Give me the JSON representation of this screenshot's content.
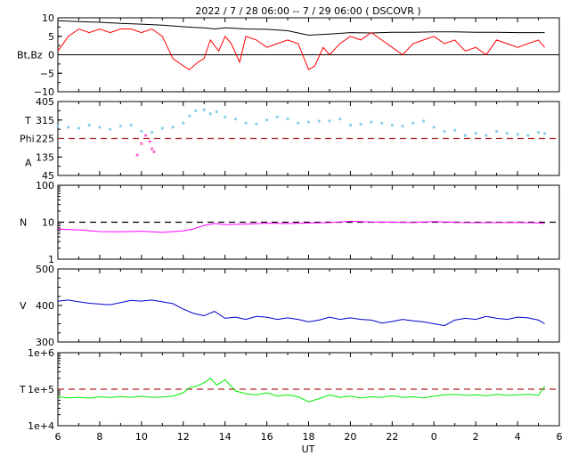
{
  "title": "2022 /  7 / 28  06:00 --  7 / 29   06:00 ( DSCOVR )",
  "x_axis": {
    "label": "UT",
    "ticks": [
      "6",
      "8",
      "10",
      "12",
      "14",
      "16",
      "18",
      "20",
      "22",
      "0",
      "2",
      "4",
      "6"
    ]
  },
  "colors": {
    "bt": "#000000",
    "bz": "#ff0000",
    "theta": "#87ceeb",
    "phi": "#ff66cc",
    "ref_dashed": "#b22222",
    "density": "#ff00ff",
    "speed": "#0000cc",
    "temperature": "#00ee00"
  },
  "panels": [
    {
      "id": "mag",
      "ylabel": "Bt,Bz",
      "yticks": [
        "10",
        "5",
        "0",
        "−5",
        "−10"
      ]
    },
    {
      "id": "angles",
      "ylabel_lines": [
        "T",
        "Phi",
        "A"
      ],
      "yticks": [
        "405",
        "315",
        "225",
        "135",
        "45"
      ]
    },
    {
      "id": "density",
      "ylabel": "N",
      "yticks": [
        "100",
        "10",
        "1"
      ]
    },
    {
      "id": "speed",
      "ylabel": "V",
      "yticks": [
        "500",
        "400",
        "300"
      ]
    },
    {
      "id": "temp",
      "ylabel": "T",
      "yticks": [
        "1e+6",
        "1e+5",
        "1e+4"
      ]
    }
  ],
  "chart_data": [
    {
      "type": "line",
      "title": "",
      "ylabel": "Bt,Bz",
      "xlim": [
        6,
        30
      ],
      "ylim": [
        -10,
        10
      ],
      "grid": false,
      "series": [
        {
          "name": "",
          "color": "#000000",
          "x": [
            6.0,
            7,
            8,
            9,
            10,
            11,
            12,
            12.5,
            13,
            13.5,
            14,
            15,
            16,
            17,
            18,
            19,
            20,
            21,
            22,
            23,
            24,
            25,
            26,
            27,
            28,
            29,
            29.3
          ],
          "values": [
            9.2,
            9.0,
            8.8,
            8.5,
            8.3,
            8.0,
            7.6,
            7.4,
            7.3,
            7.0,
            7.3,
            7.0,
            6.9,
            6.5,
            5.3,
            5.6,
            6.0,
            5.9,
            6.1,
            6.1,
            6.2,
            6.2,
            6.1,
            6.1,
            6.0,
            6.0,
            6.0
          ]
        },
        {
          "name": "",
          "color": "#ff0000",
          "x": [
            6.0,
            6.5,
            7,
            7.5,
            8,
            8.5,
            9,
            9.5,
            10,
            10.5,
            11,
            11.5,
            12,
            12.3,
            12.7,
            13,
            13.3,
            13.7,
            14,
            14.3,
            14.7,
            15,
            15.5,
            16,
            16.5,
            17,
            17.5,
            18,
            18.3,
            18.7,
            19,
            19.5,
            20,
            20.5,
            21,
            21.5,
            22,
            22.5,
            23,
            23.5,
            24,
            24.5,
            25,
            25.5,
            26,
            26.5,
            27,
            27.5,
            28,
            28.5,
            29,
            29.3
          ],
          "values": [
            1,
            5,
            7,
            6,
            7,
            6,
            7,
            7,
            6,
            7,
            5,
            -1,
            -3,
            -4,
            -2,
            -1,
            4,
            1,
            5,
            3,
            -2,
            5,
            4,
            2,
            3,
            4,
            3,
            -4,
            -3,
            2,
            0,
            3,
            5,
            4,
            6,
            4,
            2,
            0,
            3,
            4,
            5,
            3,
            4,
            1,
            2,
            0,
            4,
            3,
            2,
            3,
            4,
            2
          ]
        }
      ]
    },
    {
      "type": "scatter",
      "title": "",
      "ylabel": "T / Phi / A",
      "xlim": [
        6,
        30
      ],
      "ylim": [
        45,
        405
      ],
      "grid": false,
      "reference_line": {
        "y": 225,
        "style": "dashed",
        "color": "#b22222"
      },
      "series": [
        {
          "name": "",
          "color": "#87ceeb",
          "x": [
            6.0,
            6.5,
            7,
            7.5,
            8,
            8.5,
            9,
            9.5,
            10,
            10.5,
            11,
            11.5,
            12,
            12.3,
            12.6,
            13,
            13.3,
            13.6,
            14,
            14.5,
            15,
            15.5,
            16,
            16.5,
            17,
            17.5,
            18,
            18.5,
            19,
            19.5,
            20,
            20.5,
            21,
            21.5,
            22,
            22.5,
            23,
            23.5,
            24,
            24.5,
            25,
            25.5,
            26,
            26.5,
            27,
            27.5,
            28,
            28.5,
            29,
            29.3
          ],
          "values": [
            285,
            280,
            275,
            290,
            280,
            270,
            285,
            290,
            260,
            255,
            275,
            280,
            300,
            335,
            360,
            365,
            345,
            355,
            330,
            320,
            300,
            295,
            315,
            330,
            320,
            300,
            305,
            310,
            310,
            320,
            290,
            295,
            305,
            300,
            290,
            285,
            300,
            310,
            280,
            260,
            265,
            240,
            250,
            240,
            260,
            250,
            245,
            240,
            255,
            250
          ]
        },
        {
          "name": "",
          "color": "#ff66cc",
          "x": [
            9.8,
            10.0,
            10.2,
            10.4,
            10.5,
            10.6
          ],
          "values": [
            145,
            200,
            240,
            210,
            175,
            160
          ]
        }
      ]
    },
    {
      "type": "line",
      "title": "",
      "ylabel": "N",
      "xlim": [
        6,
        30
      ],
      "ylim": [
        1,
        100
      ],
      "scale": "log",
      "grid": false,
      "reference_line": {
        "y": 10,
        "style": "dashed",
        "color": "#000000"
      },
      "series": [
        {
          "name": "",
          "color": "#ff00ff",
          "x": [
            6.0,
            7,
            8,
            9,
            10,
            11,
            12,
            12.5,
            13,
            13.5,
            14,
            15,
            16,
            17,
            18,
            19,
            20,
            21,
            22,
            23,
            24,
            25,
            26,
            27,
            28,
            29,
            29.3
          ],
          "values": [
            6.5,
            6.2,
            5.6,
            5.5,
            5.7,
            5.3,
            5.8,
            6.6,
            8.2,
            9.2,
            8.6,
            8.9,
            9.4,
            9.2,
            9.5,
            9.7,
            10.6,
            10.1,
            10.0,
            9.8,
            10.4,
            9.9,
            9.7,
            9.8,
            9.9,
            9.6,
            9.2
          ]
        }
      ]
    },
    {
      "type": "line",
      "title": "",
      "ylabel": "V",
      "xlim": [
        6,
        30
      ],
      "ylim": [
        300,
        500
      ],
      "grid": false,
      "series": [
        {
          "name": "",
          "color": "#0000cc",
          "x": [
            6.0,
            6.5,
            7,
            7.5,
            8,
            8.5,
            9,
            9.5,
            10,
            10.5,
            11,
            11.5,
            12,
            12.5,
            13,
            13.5,
            14,
            14.5,
            15,
            15.5,
            16,
            16.5,
            17,
            17.5,
            18,
            18.5,
            19,
            19.5,
            20,
            20.5,
            21,
            21.5,
            22,
            22.5,
            23,
            23.5,
            24,
            24.5,
            25,
            25.5,
            26,
            26.5,
            27,
            27.5,
            28,
            28.5,
            29,
            29.3
          ],
          "values": [
            412,
            415,
            410,
            406,
            404,
            402,
            408,
            414,
            412,
            415,
            410,
            405,
            390,
            378,
            372,
            384,
            365,
            368,
            362,
            370,
            368,
            362,
            366,
            362,
            355,
            360,
            368,
            362,
            366,
            362,
            360,
            352,
            356,
            362,
            358,
            355,
            350,
            345,
            360,
            365,
            362,
            370,
            365,
            362,
            368,
            366,
            360,
            350
          ]
        }
      ]
    },
    {
      "type": "line",
      "title": "",
      "ylabel": "T",
      "xlim": [
        6,
        30
      ],
      "ylim": [
        10000,
        1000000
      ],
      "scale": "log",
      "grid": false,
      "reference_line": {
        "y": 100000,
        "style": "dashed",
        "color": "#b22222"
      },
      "series": [
        {
          "name": "",
          "color": "#00ee00",
          "x": [
            6.0,
            6.5,
            7,
            7.5,
            8,
            8.5,
            9,
            9.5,
            10,
            10.5,
            11,
            11.5,
            12,
            12.3,
            12.6,
            13,
            13.3,
            13.6,
            14,
            14.5,
            15,
            15.5,
            16,
            16.5,
            17,
            17.5,
            18,
            18.5,
            19,
            19.5,
            20,
            20.5,
            21,
            21.5,
            22,
            22.5,
            23,
            23.5,
            24,
            24.5,
            25,
            25.5,
            26,
            26.5,
            27,
            27.5,
            28,
            28.5,
            29,
            29.3
          ],
          "values": [
            62000,
            58000,
            60000,
            57000,
            62000,
            59000,
            63000,
            60000,
            64000,
            60000,
            61000,
            65000,
            80000,
            110000,
            120000,
            150000,
            200000,
            130000,
            180000,
            90000,
            75000,
            70000,
            80000,
            65000,
            70000,
            62000,
            45000,
            55000,
            70000,
            60000,
            65000,
            58000,
            62000,
            60000,
            66000,
            60000,
            62000,
            58000,
            65000,
            70000,
            72000,
            68000,
            70000,
            66000,
            72000,
            68000,
            70000,
            72000,
            68000,
            120000
          ]
        }
      ]
    }
  ]
}
